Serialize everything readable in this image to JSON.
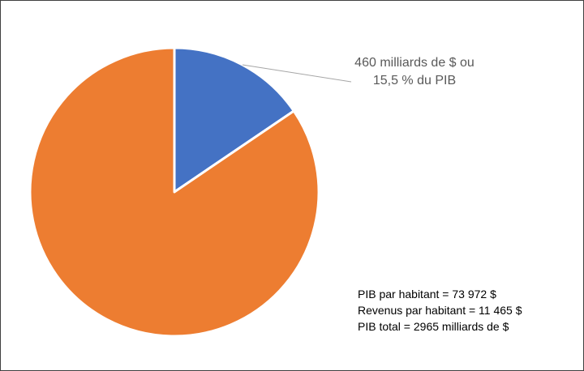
{
  "chart_data": {
    "type": "pie",
    "values": [
      15.5,
      84.5
    ],
    "value_labels": [
      "460 milliards de $ ou 15,5 % du PIB",
      null
    ],
    "colors": [
      "#4472c4",
      "#ed7d31"
    ],
    "annotations": [
      "PIB par habitant = 73 972 $",
      "Revenus par habitant = 11 465 $",
      "PIB total = 2965 milliards  de $"
    ]
  }
}
